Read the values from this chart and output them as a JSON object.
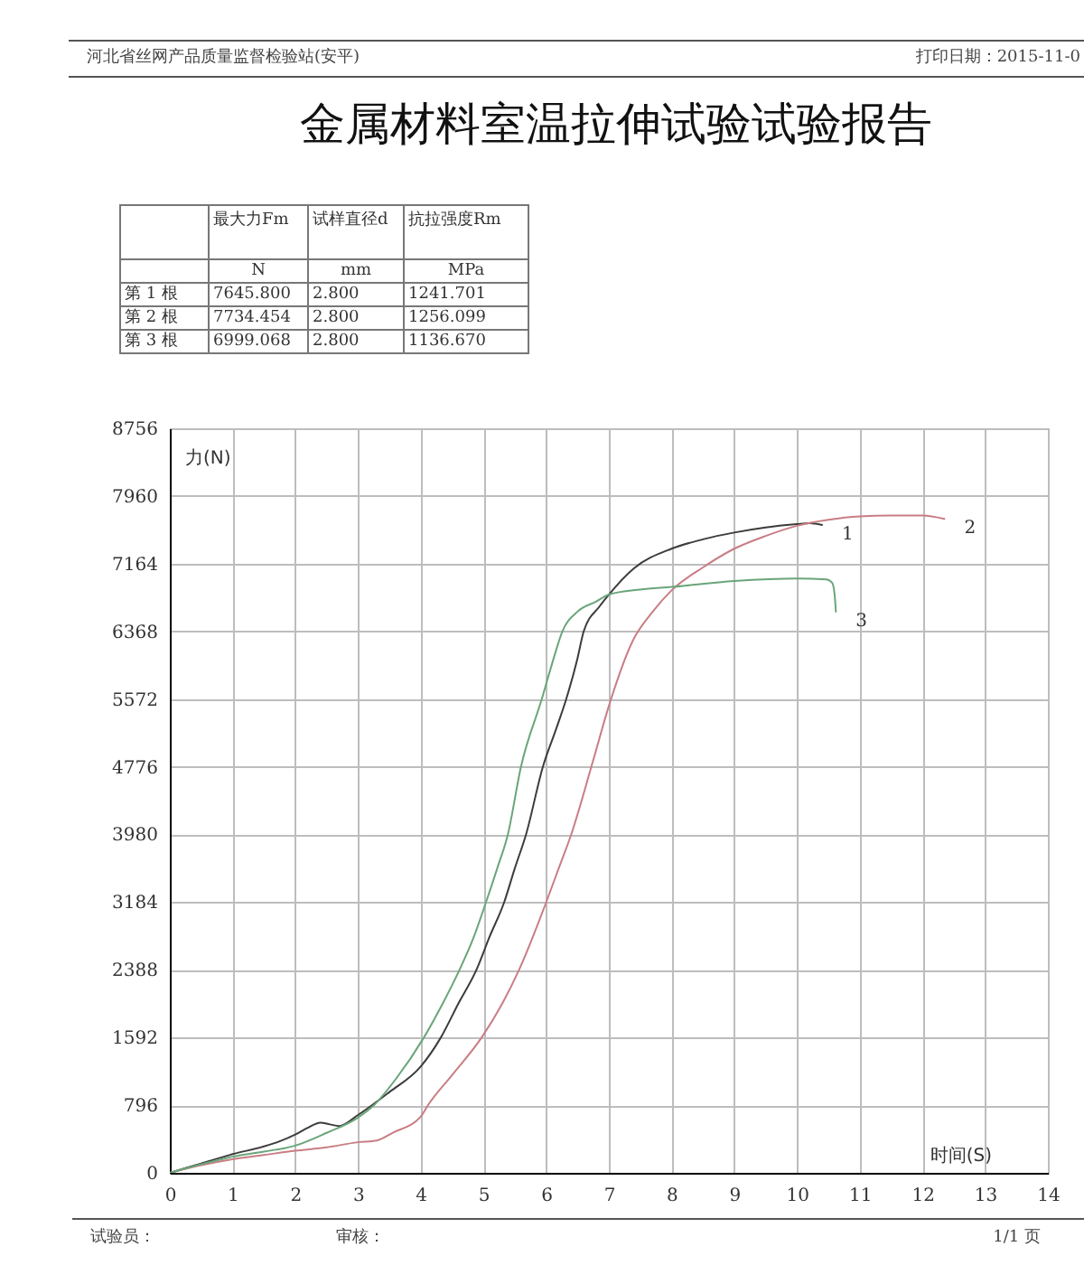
{
  "chart_data": [
    {
      "type": "other",
      "title": "金属材料室温拉伸试验试验报告",
      "annotations": [
        "河北省丝网产品质量监督检验站(安平)",
        "打印日期：2015-11-0"
      ],
      "categories": [
        "最大力Fm",
        "试样直径d",
        "抗拉强度Rm"
      ],
      "y_categories": [
        null,
        "第 1 根",
        "第 2 根",
        "第 3 根"
      ],
      "cell_labels": [
        [
          "N",
          "mm",
          "MPa"
        ],
        [
          "7645.800",
          "2.800",
          "1241.701"
        ],
        [
          "7734.454",
          "2.800",
          "1256.099"
        ],
        [
          "6999.068",
          "2.800",
          "1136.670"
        ]
      ]
    },
    {
      "type": "line",
      "xlabel": "时间(S)",
      "ylabel": "力(N)",
      "xlim": [
        0,
        14
      ],
      "xticks": [
        0,
        1,
        2,
        3,
        4,
        5,
        6,
        7,
        8,
        9,
        10,
        11,
        12,
        13,
        14
      ],
      "ylim": [
        0,
        8756
      ],
      "yticks": [
        0,
        796,
        1592,
        2388,
        3184,
        3980,
        4776,
        5572,
        6368,
        7164,
        7960,
        8756
      ],
      "grid": true,
      "series": [
        {
          "name": "1",
          "color": "#3c3c3c",
          "x": [
            0,
            0.5,
            1,
            1.5,
            1.75,
            2,
            2.2,
            2.4,
            2.55,
            2.7,
            3,
            3.5,
            4,
            4.32,
            4.6,
            4.89,
            5.1,
            5.33,
            5.5,
            5.68,
            5.95,
            6.15,
            6.32,
            6.5,
            6.6,
            6.85,
            7,
            7.4,
            8,
            8.5,
            9,
            9.5,
            10,
            10.2,
            10.4
          ],
          "values": [
            0,
            110,
            220,
            310,
            370,
            450,
            530,
            590,
            570,
            550,
            680,
            950,
            1250,
            1590,
            1990,
            2390,
            2780,
            3180,
            3580,
            3980,
            4780,
            5200,
            5570,
            6050,
            6370,
            6660,
            6800,
            7110,
            7340,
            7450,
            7530,
            7590,
            7630,
            7640,
            7620
          ]
        },
        {
          "name": "2",
          "color": "#c97d84",
          "x": [
            0,
            0.5,
            1,
            1.5,
            2,
            2.5,
            3,
            3.3,
            3.55,
            4,
            4.12,
            4.5,
            4.97,
            5.3,
            5.57,
            6,
            6.2,
            6.4,
            6.75,
            7,
            7.39,
            7.7,
            8,
            8.5,
            9,
            9.5,
            10,
            10.5,
            11,
            11.5,
            12,
            12.35
          ],
          "values": [
            0,
            90,
            160,
            210,
            260,
            300,
            360,
            380,
            470,
            660,
            800,
            1150,
            1590,
            1990,
            2390,
            3180,
            3580,
            3980,
            4850,
            5490,
            6270,
            6600,
            6850,
            7120,
            7340,
            7490,
            7610,
            7680,
            7720,
            7730,
            7730,
            7690
          ]
        },
        {
          "name": "3",
          "color": "#6aa57a",
          "x": [
            0,
            0.5,
            1,
            1.5,
            2,
            2.5,
            3,
            3.26,
            3.6,
            4.05,
            4.35,
            4.62,
            4.85,
            5.04,
            5.22,
            5.39,
            5.6,
            5.93,
            6.1,
            6.26,
            6.5,
            6.8,
            7,
            7.5,
            8,
            9,
            10,
            10.47,
            10.56,
            10.6,
            10.62
          ],
          "values": [
            0,
            100,
            190,
            250,
            320,
            470,
            650,
            800,
            1100,
            1590,
            1990,
            2390,
            2780,
            3180,
            3580,
            3980,
            4780,
            5570,
            6000,
            6370,
            6600,
            6720,
            6800,
            6860,
            6890,
            6960,
            6990,
            6980,
            6940,
            6800,
            6600
          ]
        }
      ],
      "annotations": [
        "试验员：",
        "审核：",
        "1/1 页"
      ]
    }
  ]
}
